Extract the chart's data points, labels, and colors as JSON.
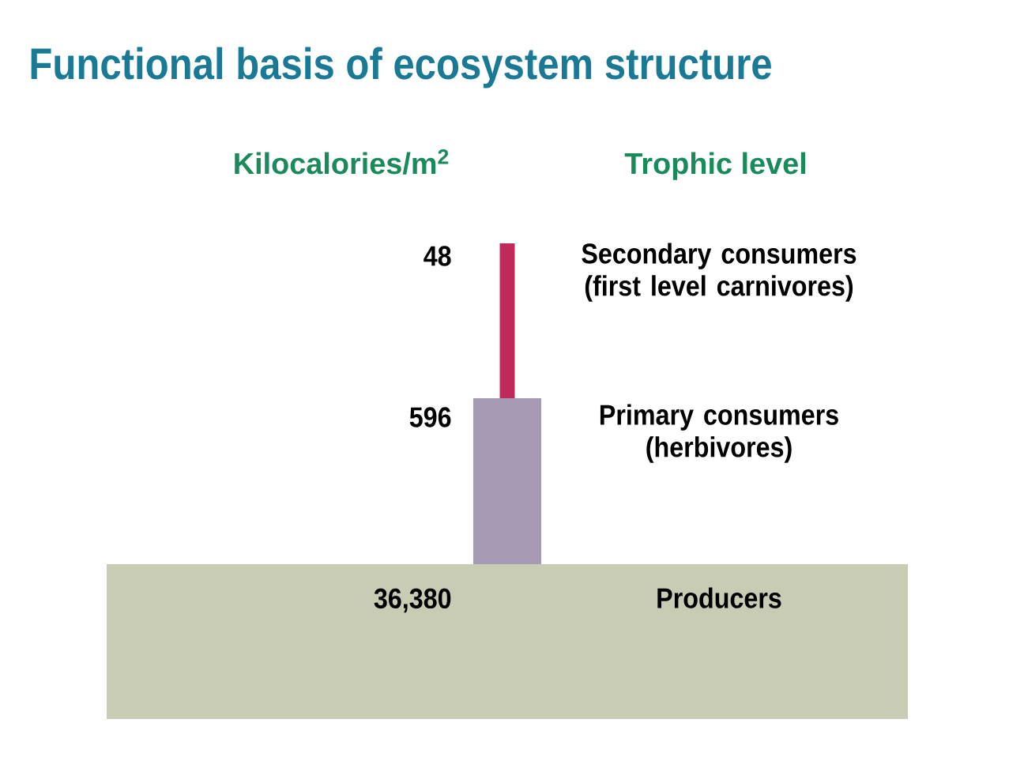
{
  "chart_data": {
    "type": "other",
    "title": "Functional basis of ecosystem structure",
    "annotations": [
      "Kilocalories/m$^{2}$",
      "Trophic level"
    ],
    "categories": [
      "Secondary consumers (first level carnivores)",
      "Primary consumers (herbivores)",
      "Producers"
    ],
    "values": [
      48,
      596,
      36380
    ],
    "value_labels": [
      "48",
      "596",
      "36,380"
    ],
    "colors": [
      "#c02a5a",
      "#a69ab4",
      "#c8ccb4"
    ]
  }
}
